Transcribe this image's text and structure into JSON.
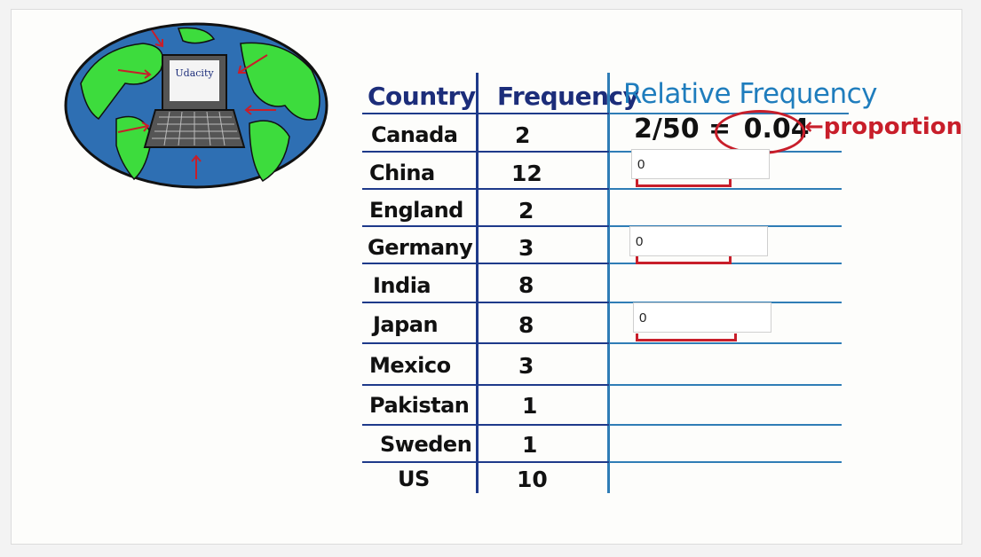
{
  "logo": {
    "screen_text": "Udacity"
  },
  "table": {
    "headers": {
      "country": "Country",
      "frequency": "Frequency",
      "relative": "Relative Frequency"
    },
    "rows": [
      {
        "country": "Canada",
        "frequency": "2"
      },
      {
        "country": "China",
        "frequency": "12"
      },
      {
        "country": "England",
        "frequency": "2"
      },
      {
        "country": "Germany",
        "frequency": "3"
      },
      {
        "country": "India",
        "frequency": "8"
      },
      {
        "country": "Japan",
        "frequency": "8"
      },
      {
        "country": "Mexico",
        "frequency": "3"
      },
      {
        "country": "Pakistan",
        "frequency": "1"
      },
      {
        "country": "Sweden",
        "frequency": "1"
      },
      {
        "country": "US",
        "frequency": "10"
      }
    ]
  },
  "example": {
    "formula": "2/50 =",
    "result": "0.04",
    "note": "proportion"
  },
  "inputs": {
    "china": "0",
    "germany": "0",
    "japan": "0"
  },
  "colors": {
    "ink_blue": "#1e3a8a",
    "teal": "#2f7db6",
    "red": "#c81e2a",
    "globe_blue": "#2e6fb3",
    "land_green": "#3ddc3d"
  }
}
